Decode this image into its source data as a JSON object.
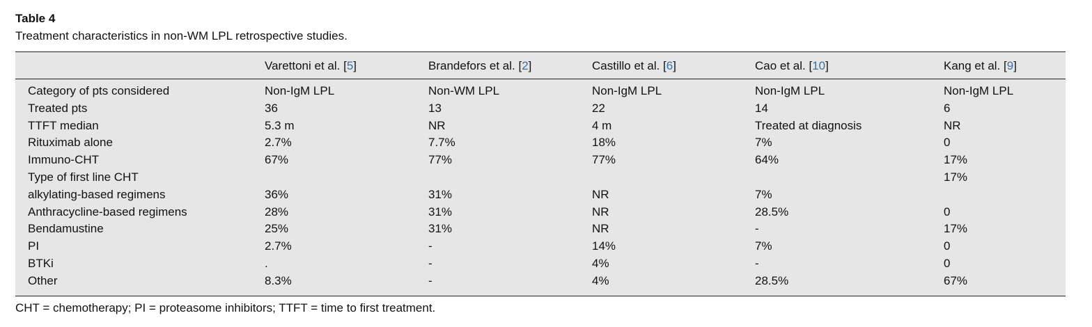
{
  "caption": {
    "label": "Table 4",
    "text": "Treatment characteristics in non-WM LPL retrospective studies."
  },
  "columns": [
    {
      "name": "Varettoni et al. [",
      "ref": "5",
      "close": "]"
    },
    {
      "name": "Brandefors et al. [",
      "ref": "2",
      "close": "]"
    },
    {
      "name": "Castillo et al. [",
      "ref": "6",
      "close": "]"
    },
    {
      "name": "Cao et al. [",
      "ref": "10",
      "close": "]"
    },
    {
      "name": "Kang et al. [",
      "ref": "9",
      "close": "]"
    }
  ],
  "rows": [
    {
      "label": "Category of pts considered",
      "values": [
        "Non-IgM LPL",
        "Non-WM LPL",
        "Non-IgM LPL",
        "Non-IgM LPL",
        "Non-IgM LPL"
      ]
    },
    {
      "label": "Treated pts",
      "values": [
        "36",
        "13",
        "22",
        "14",
        "6"
      ]
    },
    {
      "label": "TTFT median",
      "values": [
        "5.3 m",
        "NR",
        "4 m",
        "Treated at diagnosis",
        "NR"
      ]
    },
    {
      "label": "Rituximab alone",
      "values": [
        "2.7%",
        "7.7%",
        "18%",
        "7%",
        "0"
      ]
    },
    {
      "label": "Immuno-CHT",
      "values": [
        "67%",
        "77%",
        "77%",
        "64%",
        "17%"
      ]
    },
    {
      "label": "Type of first line CHT",
      "values": [
        "",
        "",
        "",
        "",
        "17%"
      ]
    },
    {
      "label": "alkylating-based regimens",
      "values": [
        "36%",
        "31%",
        "NR",
        "7%",
        ""
      ]
    },
    {
      "label": "Anthracycline-based regimens",
      "values": [
        "28%",
        "31%",
        "NR",
        "28.5%",
        "0"
      ]
    },
    {
      "label": "Bendamustine",
      "values": [
        "25%",
        "31%",
        "NR",
        "-",
        "17%"
      ]
    },
    {
      "label": "PI",
      "values": [
        "2.7%",
        "-",
        "14%",
        "7%",
        "0"
      ]
    },
    {
      "label": "BTKi",
      "values": [
        ".",
        "-",
        "4%",
        "-",
        "0"
      ]
    },
    {
      "label": "Other",
      "values": [
        "8.3%",
        "-",
        "4%",
        "28.5%",
        "67%"
      ]
    }
  ],
  "footnote": "CHT = chemotherapy; PI = proteasome inhibitors; TTFT = time to first treatment."
}
